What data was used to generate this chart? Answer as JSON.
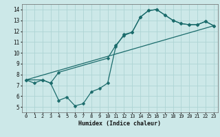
{
  "xlabel": "Humidex (Indice chaleur)",
  "bg_color": "#cce8e8",
  "grid_color": "#aed4d4",
  "line_color": "#1a6b6b",
  "xlim": [
    -0.5,
    23.5
  ],
  "ylim": [
    4.5,
    14.5
  ],
  "xticks": [
    0,
    1,
    2,
    3,
    4,
    5,
    6,
    7,
    8,
    9,
    10,
    11,
    12,
    13,
    14,
    15,
    16,
    17,
    18,
    19,
    20,
    21,
    22,
    23
  ],
  "yticks": [
    5,
    6,
    7,
    8,
    9,
    10,
    11,
    12,
    13,
    14
  ],
  "line1_x": [
    0,
    1,
    2,
    3,
    4,
    5,
    6,
    7,
    8,
    9,
    10,
    11,
    12,
    13,
    14,
    15,
    16,
    17,
    18,
    19,
    20,
    21,
    22,
    23
  ],
  "line1_y": [
    7.5,
    7.2,
    7.5,
    7.2,
    5.6,
    5.9,
    5.1,
    5.3,
    6.4,
    6.7,
    7.2,
    10.6,
    11.7,
    11.9,
    13.3,
    13.9,
    14.0,
    13.5,
    13.0,
    12.7,
    12.6,
    12.6,
    12.9,
    12.5
  ],
  "line2_x": [
    0,
    2,
    3,
    4,
    10,
    11,
    12,
    13,
    14,
    15,
    16,
    17,
    18,
    19,
    20,
    21,
    22,
    23
  ],
  "line2_y": [
    7.5,
    7.5,
    7.2,
    8.2,
    9.5,
    10.7,
    11.6,
    11.9,
    13.3,
    13.9,
    14.0,
    13.5,
    13.0,
    12.7,
    12.6,
    12.6,
    12.9,
    12.5
  ],
  "line3_x": [
    0,
    23
  ],
  "line3_y": [
    7.5,
    12.5
  ]
}
